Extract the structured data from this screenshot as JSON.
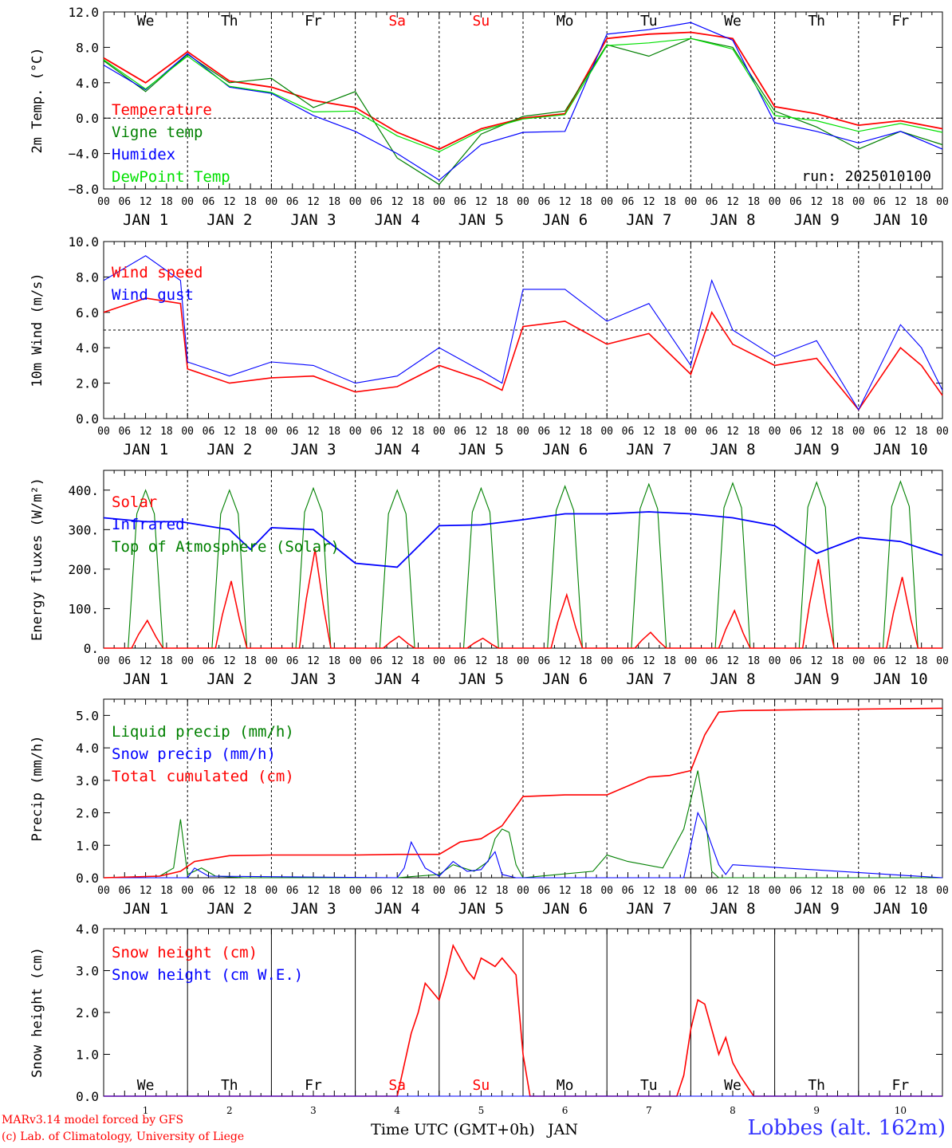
{
  "days": [
    "1",
    "2",
    "3",
    "4",
    "5",
    "6",
    "7",
    "8",
    "9",
    "10"
  ],
  "weekdays": [
    "We",
    "Th",
    "Fr",
    "Sa",
    "Su",
    "Mo",
    "Tu",
    "We",
    "Th",
    "Fr"
  ],
  "weekend_flags": [
    false,
    false,
    false,
    true,
    true,
    false,
    false,
    false,
    false,
    false
  ],
  "hour_ticks": [
    "00",
    "06",
    "12",
    "18"
  ],
  "final_tick": "00",
  "date_labels": [
    "JAN  1",
    "JAN  2",
    "JAN  3",
    "JAN  4",
    "JAN  5",
    "JAN  6",
    "JAN  7",
    "JAN  8",
    "JAN  9",
    "JAN 10"
  ],
  "run_label": "run: 2025010100",
  "xlabel": "Time UTC (GMT+0h)",
  "month_label": "JAN",
  "credit_line1": "MARv3.14 model forced by GFS",
  "credit_line2": "(c) Lab. of Climatology, University of Liege",
  "station": "Lobbes (alt. 162m)",
  "colors": {
    "red": "#ff0000",
    "green": "#008000",
    "blue": "#0000ff",
    "lightgreen": "#00e000",
    "weekend": "#ff0000"
  },
  "chart_data": [
    {
      "type": "line",
      "ylabel": "2m Temp. (°C)",
      "ylim": [
        -8,
        12
      ],
      "yticks": [
        "−8.0",
        "−4.0",
        "0.0",
        "4.0",
        "8.0",
        "12.0"
      ],
      "ytick_values": [
        -8,
        -4,
        0,
        4,
        8,
        12
      ],
      "ref_line": 0,
      "x_hours": [
        0,
        12,
        24,
        36,
        48,
        60,
        72,
        84,
        96,
        108,
        120,
        132,
        144,
        156,
        168,
        180,
        192,
        204,
        216,
        228,
        240
      ],
      "series": [
        {
          "name": "Temperature",
          "color": "red",
          "values": [
            6.8,
            4.0,
            7.5,
            4.2,
            3.5,
            2.0,
            1.2,
            -1.6,
            -3.5,
            -1.2,
            0.0,
            0.5,
            9.0,
            9.5,
            9.7,
            9.0,
            1.3,
            0.5,
            -0.8,
            -0.3,
            -1.2
          ]
        },
        {
          "name": "Vigne temp",
          "color": "green",
          "values": [
            6.5,
            3.0,
            7.2,
            4.0,
            4.5,
            1.2,
            3.0,
            -4.5,
            -7.5,
            -1.8,
            0.2,
            0.8,
            8.3,
            7.0,
            9.0,
            8.0,
            0.8,
            -1.0,
            -3.5,
            -1.5,
            -3.0
          ]
        },
        {
          "name": "Humidex",
          "color": "blue",
          "values": [
            6.0,
            3.2,
            7.3,
            3.5,
            2.8,
            0.3,
            -1.5,
            -4.0,
            -7.0,
            -3.0,
            -1.6,
            -1.5,
            9.5,
            10.0,
            10.8,
            8.8,
            -0.5,
            -1.5,
            -2.8,
            -1.5,
            -3.5
          ]
        },
        {
          "name": "DewPoint Temp",
          "color": "lightgreen",
          "values": [
            6.6,
            3.3,
            7.0,
            3.6,
            2.9,
            0.7,
            0.8,
            -2.0,
            -3.8,
            -1.4,
            -0.1,
            0.4,
            8.2,
            8.5,
            9.0,
            7.8,
            0.3,
            -0.3,
            -1.5,
            -0.6,
            -1.6
          ]
        }
      ]
    },
    {
      "type": "line",
      "ylabel": "10m Wind (m/s)",
      "ylim": [
        0,
        10
      ],
      "yticks": [
        "0.0",
        "2.0",
        "4.0",
        "6.0",
        "8.0",
        "10.0"
      ],
      "ytick_values": [
        0,
        2,
        4,
        6,
        8,
        10
      ],
      "ref_line": 5,
      "x_hours": [
        0,
        12,
        22,
        24,
        36,
        48,
        60,
        72,
        84,
        96,
        108,
        114,
        120,
        132,
        144,
        156,
        168,
        174,
        180,
        192,
        204,
        216,
        228,
        234,
        240
      ],
      "series": [
        {
          "name": "Wind speed",
          "color": "red",
          "values": [
            6.0,
            6.8,
            6.5,
            2.8,
            2.0,
            2.3,
            2.4,
            1.5,
            1.8,
            3.0,
            2.2,
            1.6,
            5.2,
            5.5,
            4.2,
            4.8,
            2.5,
            6.0,
            4.2,
            3.0,
            3.4,
            0.5,
            4.0,
            3.0,
            1.3
          ]
        },
        {
          "name": "Wind gust",
          "color": "blue",
          "values": [
            7.8,
            9.2,
            7.8,
            3.2,
            2.4,
            3.2,
            3.0,
            2.0,
            2.4,
            4.0,
            2.7,
            2.0,
            7.3,
            7.3,
            5.5,
            6.5,
            3.0,
            7.8,
            5.0,
            3.5,
            4.4,
            0.5,
            5.3,
            4.0,
            1.6
          ]
        }
      ]
    },
    {
      "type": "line",
      "ylabel": "Energy fluxes (W/m²)",
      "ylim": [
        0,
        450
      ],
      "yticks": [
        "0.",
        "100.",
        "200.",
        "300.",
        "400."
      ],
      "ytick_values": [
        0,
        100,
        200,
        300,
        400
      ],
      "toa_peaks": [
        400,
        400,
        405,
        400,
        405,
        410,
        415,
        418,
        420,
        422
      ],
      "solar_peaks": [
        70,
        170,
        250,
        30,
        25,
        135,
        40,
        95,
        225,
        180
      ],
      "infrared": {
        "x_hours": [
          0,
          12,
          22,
          36,
          42,
          48,
          60,
          72,
          84,
          96,
          108,
          120,
          132,
          144,
          156,
          168,
          180,
          192,
          204,
          216,
          228,
          240
        ],
        "values": [
          330,
          320,
          320,
          300,
          250,
          305,
          300,
          215,
          205,
          310,
          312,
          325,
          340,
          340,
          345,
          340,
          330,
          310,
          240,
          280,
          270,
          235
        ]
      },
      "series": [
        {
          "name": "Solar",
          "color": "red"
        },
        {
          "name": "Infrared",
          "color": "blue"
        },
        {
          "name": "Top of Atmosphere (Solar)",
          "color": "green"
        }
      ]
    },
    {
      "type": "line",
      "ylabel": "Precip (mm/h)",
      "ylim": [
        0,
        5.5
      ],
      "yticks": [
        "0.0",
        "1.0",
        "2.0",
        "3.0",
        "4.0",
        "5.0"
      ],
      "ytick_values": [
        0,
        1,
        2,
        3,
        4,
        5
      ],
      "series": [
        {
          "name": "Liquid precip (mm/h)",
          "color": "green",
          "x_hours": [
            0,
            16,
            20,
            22,
            24,
            28,
            32,
            40,
            84,
            96,
            100,
            106,
            110,
            112,
            114,
            116,
            118,
            120,
            130,
            140,
            144,
            150,
            160,
            166,
            170,
            172,
            174,
            176,
            240
          ],
          "values": [
            0,
            0.05,
            0.3,
            1.8,
            0.1,
            0.3,
            0.05,
            0,
            0,
            0.1,
            0.4,
            0.2,
            0.5,
            1.2,
            1.5,
            1.4,
            0.4,
            0,
            0.1,
            0.2,
            0.7,
            0.5,
            0.3,
            1.5,
            3.3,
            2.0,
            0.2,
            0,
            0
          ]
        },
        {
          "name": "Snow precip (mm/h)",
          "color": "blue",
          "x_hours": [
            0,
            24,
            26,
            30,
            84,
            86,
            88,
            92,
            96,
            100,
            104,
            108,
            112,
            114,
            118,
            122,
            124,
            166,
            168,
            170,
            172,
            176,
            178,
            180,
            240
          ],
          "values": [
            0,
            0,
            0.3,
            0.05,
            0,
            0.3,
            1.1,
            0.3,
            0.05,
            0.5,
            0.2,
            0.25,
            0.8,
            0.1,
            0,
            0,
            0,
            0,
            1.0,
            2.0,
            1.6,
            0.4,
            0.1,
            0.4,
            0
          ]
        },
        {
          "name": "Total cumulated (cm)",
          "color": "red",
          "x_hours": [
            0,
            16,
            22,
            26,
            36,
            48,
            72,
            84,
            96,
            102,
            108,
            114,
            120,
            132,
            144,
            156,
            162,
            168,
            172,
            176,
            182,
            204,
            240
          ],
          "values": [
            0,
            0.05,
            0.2,
            0.5,
            0.68,
            0.7,
            0.7,
            0.72,
            0.72,
            1.1,
            1.2,
            1.6,
            2.5,
            2.55,
            2.55,
            3.1,
            3.15,
            3.3,
            4.4,
            5.1,
            5.15,
            5.18,
            5.22
          ]
        }
      ]
    },
    {
      "type": "line",
      "ylabel": "Snow height (cm)",
      "ylim": [
        0,
        4
      ],
      "yticks": [
        "0.0",
        "1.0",
        "2.0",
        "3.0",
        "4.0"
      ],
      "ytick_values": [
        0,
        1,
        2,
        3,
        4
      ],
      "series": [
        {
          "name": "Snow height (cm)",
          "color": "red",
          "x_hours": [
            0,
            84,
            88,
            90,
            92,
            96,
            98,
            100,
            104,
            106,
            108,
            110,
            112,
            114,
            118,
            120,
            122,
            124,
            164,
            166,
            168,
            170,
            172,
            176,
            178,
            180,
            182,
            186,
            240
          ],
          "values": [
            0,
            0,
            1.5,
            2.0,
            2.7,
            2.3,
            2.9,
            3.6,
            3.0,
            2.8,
            3.3,
            3.2,
            3.1,
            3.3,
            2.9,
            1.0,
            0,
            0,
            0,
            0.5,
            1.6,
            2.3,
            2.2,
            1.0,
            1.4,
            0.8,
            0.5,
            0,
            0
          ]
        },
        {
          "name": "Snow height (cm W.E.)",
          "color": "blue",
          "x_hours": [
            0,
            240
          ],
          "values": [
            0,
            0
          ]
        }
      ]
    }
  ]
}
